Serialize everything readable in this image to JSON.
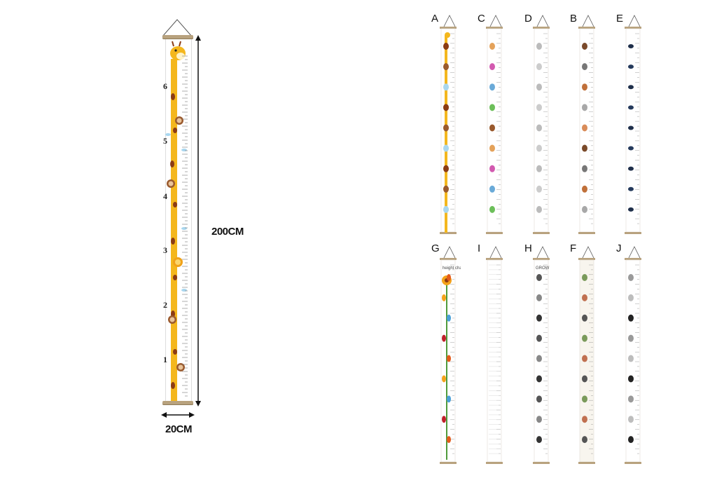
{
  "main_chart": {
    "height_label": "200CM",
    "width_label": "20CM",
    "feet_marks": [
      "6",
      "5",
      "4",
      "3",
      "2",
      "1"
    ],
    "theme": "giraffe",
    "colors": {
      "giraffe": "#f4b71d",
      "spot": "#8b3b14",
      "rod": "#b8a27e",
      "banner": "#ffffff"
    }
  },
  "variants": [
    {
      "letter": "A",
      "theme": "giraffe"
    },
    {
      "letter": "C",
      "theme": "cartoon-animals"
    },
    {
      "letter": "D",
      "theme": "line-art-animals"
    },
    {
      "letter": "B",
      "theme": "jungle-animals"
    },
    {
      "letter": "E",
      "theme": "navy-silhouettes"
    },
    {
      "letter": "G",
      "theme": "sunflower",
      "title": "height chart"
    },
    {
      "letter": "I",
      "theme": "plain-ruler"
    },
    {
      "letter": "H",
      "theme": "sketch-animals",
      "title": "GROW"
    },
    {
      "letter": "F",
      "theme": "forest-numbers"
    },
    {
      "letter": "J",
      "theme": "grey-animals"
    }
  ]
}
